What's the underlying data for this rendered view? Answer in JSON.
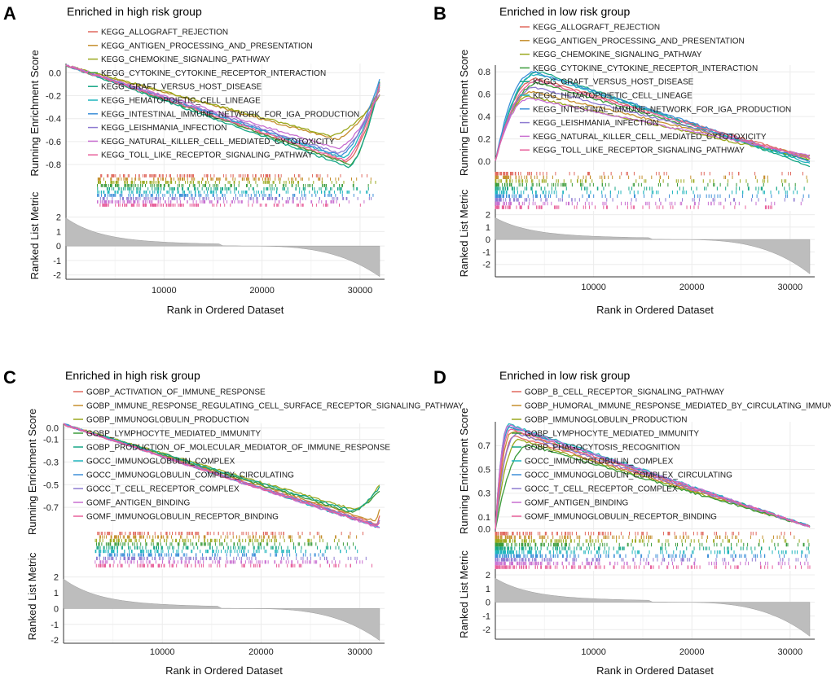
{
  "chart_data": [
    {
      "panel": "A",
      "type": "line",
      "title": "Enriched in high risk group",
      "ylabel_es": "Running Enrichment Score",
      "ylabel_rank": "Ranked List Metric",
      "xlabel": "Rank in Ordered Dataset",
      "x_ticks": [
        10000,
        20000,
        30000
      ],
      "xlim": [
        0,
        32500
      ],
      "es_ticks": [
        0.0,
        -0.2,
        -0.4,
        -0.6,
        -0.8
      ],
      "es_range": [
        -0.87,
        0.08
      ],
      "rank_ticks": [
        2,
        1,
        0,
        -1,
        -2
      ],
      "rank_range": [
        -2.3,
        2.6
      ],
      "direction": "negative",
      "legend_position": "top-left",
      "series": [
        {
          "name": "KEGG_ALLOGRAFT_REJECTION",
          "color": "#e0685e",
          "peak": -0.78,
          "peak_x": 28500,
          "end": -0.12
        },
        {
          "name": "KEGG_ANTIGEN_PROCESSING_AND_PRESENTATION",
          "color": "#c58f2e",
          "peak": -0.58,
          "peak_x": 27500,
          "end": -0.15
        },
        {
          "name": "KEGG_CHEMOKINE_SIGNALING_PATHWAY",
          "color": "#9aa81d",
          "peak": -0.55,
          "peak_x": 27000,
          "end": -0.2
        },
        {
          "name": "KEGG_CYTOKINE_CYTOKINE_RECEPTOR_INTERACTION",
          "color": "#3b9b3b",
          "peak": -0.8,
          "peak_x": 29000,
          "end": -0.08
        },
        {
          "name": "KEGG_GRAFT_VERSUS_HOST_DISEASE",
          "color": "#16a685",
          "peak": -0.82,
          "peak_x": 28800,
          "end": -0.1
        },
        {
          "name": "KEGG_HEMATOPOIETIC_CELL_LINEAGE",
          "color": "#1fb5bd",
          "peak": -0.74,
          "peak_x": 28200,
          "end": -0.1
        },
        {
          "name": "KEGG_INTESTINAL_IMMUNE_NETWORK_FOR_IGA_PRODUCTION",
          "color": "#3d8fd8",
          "peak": -0.72,
          "peak_x": 28000,
          "end": -0.06
        },
        {
          "name": "KEGG_LEISHMANIA_INFECTION",
          "color": "#8e7bd1",
          "peak": -0.7,
          "peak_x": 27800,
          "end": -0.14
        },
        {
          "name": "KEGG_NATURAL_KILLER_CELL_MEDIATED_CYTOTOXICITY",
          "color": "#c86ed0",
          "peak": -0.66,
          "peak_x": 27600,
          "end": -0.18
        },
        {
          "name": "KEGG_TOLL_LIKE_RECEPTOR_SIGNALING_PATHWAY",
          "color": "#e8609b",
          "peak": -0.76,
          "peak_x": 28400,
          "end": -0.1
        }
      ]
    },
    {
      "panel": "B",
      "type": "line",
      "title": "Enriched in low risk group",
      "ylabel_es": "Running Enrichment Score",
      "ylabel_rank": "Ranked List Metric",
      "xlabel": "Rank in Ordered Dataset",
      "x_ticks": [
        10000,
        20000,
        30000
      ],
      "xlim": [
        0,
        32500
      ],
      "es_ticks": [
        0.8,
        0.6,
        0.4,
        0.2,
        0.0
      ],
      "es_range": [
        -0.08,
        0.86
      ],
      "rank_ticks": [
        2,
        1,
        0,
        -1,
        -2
      ],
      "rank_range": [
        -3.0,
        2.3
      ],
      "direction": "positive",
      "legend_position": "top-left",
      "series": [
        {
          "name": "KEGG_ALLOGRAFT_REJECTION",
          "color": "#e0685e",
          "peak": 0.74,
          "peak_x": 4200,
          "end": 0.03
        },
        {
          "name": "KEGG_ANTIGEN_PROCESSING_AND_PRESENTATION",
          "color": "#c58f2e",
          "peak": 0.62,
          "peak_x": 3800,
          "end": 0.04
        },
        {
          "name": "KEGG_CHEMOKINE_SIGNALING_PATHWAY",
          "color": "#9aa81d",
          "peak": 0.58,
          "peak_x": 3500,
          "end": 0.02
        },
        {
          "name": "KEGG_CYTOKINE_CYTOKINE_RECEPTOR_INTERACTION",
          "color": "#3b9b3b",
          "peak": 0.7,
          "peak_x": 4500,
          "end": 0.0
        },
        {
          "name": "KEGG_GRAFT_VERSUS_HOST_DISEASE",
          "color": "#16a685",
          "peak": 0.8,
          "peak_x": 4600,
          "end": -0.04
        },
        {
          "name": "KEGG_HEMATOPOIETIC_CELL_LINEAGE",
          "color": "#1fb5bd",
          "peak": 0.78,
          "peak_x": 4300,
          "end": -0.02
        },
        {
          "name": "KEGG_INTESTINAL_IMMUNE_NETWORK_FOR_IGA_PRODUCTION",
          "color": "#3d8fd8",
          "peak": 0.8,
          "peak_x": 4000,
          "end": 0.0
        },
        {
          "name": "KEGG_LEISHMANIA_INFECTION",
          "color": "#8e7bd1",
          "peak": 0.66,
          "peak_x": 4100,
          "end": 0.03
        },
        {
          "name": "KEGG_NATURAL_KILLER_CELL_MEDIATED_CYTOTOXICITY",
          "color": "#c86ed0",
          "peak": 0.56,
          "peak_x": 3600,
          "end": 0.05
        },
        {
          "name": "KEGG_TOLL_LIKE_RECEPTOR_SIGNALING_PATHWAY",
          "color": "#e8609b",
          "peak": 0.72,
          "peak_x": 4400,
          "end": 0.02
        }
      ]
    },
    {
      "panel": "C",
      "type": "line",
      "title": "Enriched in high risk group",
      "ylabel_es": "Running Enrichment Score",
      "ylabel_rank": "Ranked List Metric",
      "xlabel": "Rank in Ordered Dataset",
      "x_ticks": [
        10000,
        20000,
        30000
      ],
      "xlim": [
        0,
        32500
      ],
      "es_ticks": [
        0.0,
        -0.1,
        -0.3,
        -0.5,
        -0.7
      ],
      "es_range": [
        -0.9,
        0.04
      ],
      "rank_ticks": [
        2,
        1,
        0,
        -1,
        -2
      ],
      "rank_range": [
        -2.2,
        2.5
      ],
      "direction": "negative",
      "legend_position": "top-left",
      "series": [
        {
          "name": "GOBP_ACTIVATION_OF_IMMUNE_RESPONSE",
          "color": "#e0685e",
          "peak": -0.85,
          "peak_x": 31800,
          "end": -0.78
        },
        {
          "name": "GOBP_IMMUNE_RESPONSE_REGULATING_CELL_SURFACE_RECEPTOR_SIGNALING_PATHWAY",
          "color": "#c58f2e",
          "peak": -0.82,
          "peak_x": 31500,
          "end": -0.72
        },
        {
          "name": "GOBP_IMMUNOGLOBULIN_PRODUCTION",
          "color": "#9aa81d",
          "peak": -0.72,
          "peak_x": 29500,
          "end": -0.5
        },
        {
          "name": "GOBP_LYMPHOCYTE_MEDIATED_IMMUNITY",
          "color": "#3b9b3b",
          "peak": -0.74,
          "peak_x": 29000,
          "end": -0.55
        },
        {
          "name": "GOBP_PRODUCTION_OF_MOLECULAR_MEDIATOR_OF_IMMUNE_RESPONSE",
          "color": "#16a685",
          "peak": -0.73,
          "peak_x": 29200,
          "end": -0.52
        },
        {
          "name": "GOCC_IMMUNOGLOBULIN_COMPLEX",
          "color": "#1fb5bd",
          "peak": -0.88,
          "peak_x": 32000,
          "end": -0.85
        },
        {
          "name": "GOCC_IMMUNOGLOBULIN_COMPLEX_CIRCULATING",
          "color": "#3d8fd8",
          "peak": -0.87,
          "peak_x": 32000,
          "end": -0.84
        },
        {
          "name": "GOCC_T_CELL_RECEPTOR_COMPLEX",
          "color": "#8e7bd1",
          "peak": -0.86,
          "peak_x": 31900,
          "end": -0.82
        },
        {
          "name": "GOMF_ANTIGEN_BINDING",
          "color": "#c86ed0",
          "peak": -0.88,
          "peak_x": 32000,
          "end": -0.86
        },
        {
          "name": "GOMF_IMMUNOGLOBULIN_RECEPTOR_BINDING",
          "color": "#e8609b",
          "peak": -0.87,
          "peak_x": 31900,
          "end": -0.83
        }
      ]
    },
    {
      "panel": "D",
      "type": "line",
      "title": "Enriched in low risk group",
      "ylabel_es": "Running Enrichment Score",
      "ylabel_rank": "Ranked List Metric",
      "xlabel": "Rank in Ordered Dataset",
      "x_ticks": [
        10000,
        20000,
        30000
      ],
      "xlim": [
        0,
        32500
      ],
      "es_ticks": [
        0.7,
        0.5,
        0.3,
        0.1,
        0.0
      ],
      "es_range": [
        -0.01,
        0.9
      ],
      "rank_ticks": [
        2,
        1,
        0,
        -1,
        -2
      ],
      "rank_range": [
        -2.7,
        2.3
      ],
      "direction": "positive",
      "legend_position": "top-left",
      "series": [
        {
          "name": "GOBP_B_CELL_RECEPTOR_SIGNALING_PATHWAY",
          "color": "#e0685e",
          "peak": 0.78,
          "peak_x": 2000,
          "end": 0.02
        },
        {
          "name": "GOBP_HUMORAL_IMMUNE_RESPONSE_MEDIATED_BY_CIRCULATING_IMMUNOGLOBULIN",
          "color": "#c58f2e",
          "peak": 0.82,
          "peak_x": 1800,
          "end": 0.02
        },
        {
          "name": "GOBP_IMMUNOGLOBULIN_PRODUCTION",
          "color": "#9aa81d",
          "peak": 0.75,
          "peak_x": 2500,
          "end": 0.02
        },
        {
          "name": "GOBP_LYMPHOCYTE_MEDIATED_IMMUNITY",
          "color": "#3b9b3b",
          "peak": 0.7,
          "peak_x": 3500,
          "end": 0.02
        },
        {
          "name": "GOBP_PHAGOCYTOSIS_RECOGNITION",
          "color": "#16a685",
          "peak": 0.86,
          "peak_x": 1500,
          "end": 0.02
        },
        {
          "name": "GOCC_IMMUNOGLOBULIN_COMPLEX",
          "color": "#1fb5bd",
          "peak": 0.88,
          "peak_x": 1400,
          "end": 0.02
        },
        {
          "name": "GOCC_IMMUNOGLOBULIN_COMPLEX_CIRCULATING",
          "color": "#3d8fd8",
          "peak": 0.86,
          "peak_x": 1500,
          "end": 0.02
        },
        {
          "name": "GOCC_T_CELL_RECEPTOR_COMPLEX",
          "color": "#8e7bd1",
          "peak": 0.8,
          "peak_x": 2200,
          "end": 0.02
        },
        {
          "name": "GOMF_ANTIGEN_BINDING",
          "color": "#c86ed0",
          "peak": 0.87,
          "peak_x": 1400,
          "end": 0.02
        },
        {
          "name": "GOMF_IMMUNOGLOBULIN_RECEPTOR_BINDING",
          "color": "#e8609b",
          "peak": 0.84,
          "peak_x": 1600,
          "end": 0.02
        }
      ]
    }
  ]
}
